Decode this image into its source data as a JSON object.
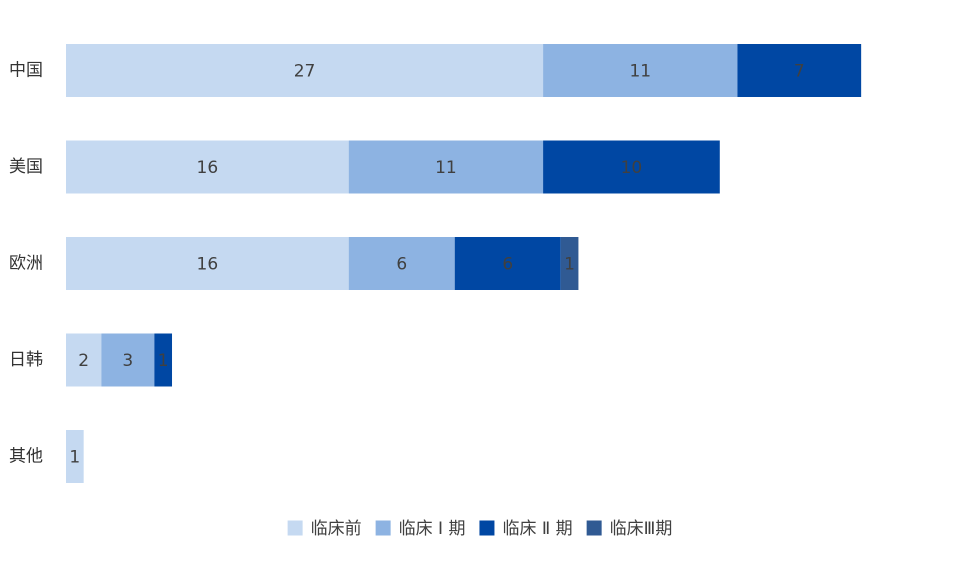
{
  "chart_data": {
    "type": "bar",
    "orientation": "horizontal",
    "stacked": true,
    "categories": [
      "中国",
      "美国",
      "欧洲",
      "日韩",
      "其他"
    ],
    "series": [
      {
        "name": "临床前",
        "color": "#c5d9f1",
        "values": [
          27,
          16,
          16,
          2,
          1
        ]
      },
      {
        "name": "临床Ⅰ期",
        "color": "#8db3e2",
        "values": [
          11,
          11,
          6,
          3,
          0
        ]
      },
      {
        "name": "临床Ⅱ期",
        "color": "#0047a3",
        "values": [
          7,
          10,
          6,
          1,
          0
        ]
      },
      {
        "name": "临床Ⅲ期",
        "color": "#305a93",
        "values": [
          0,
          0,
          1,
          0,
          0
        ]
      }
    ],
    "legend_labels": [
      "临床前",
      "临床 Ⅰ 期",
      "临床 Ⅱ 期",
      "临床Ⅲ期"
    ],
    "legend_position": "bottom",
    "grid": false,
    "data_labels": true
  }
}
